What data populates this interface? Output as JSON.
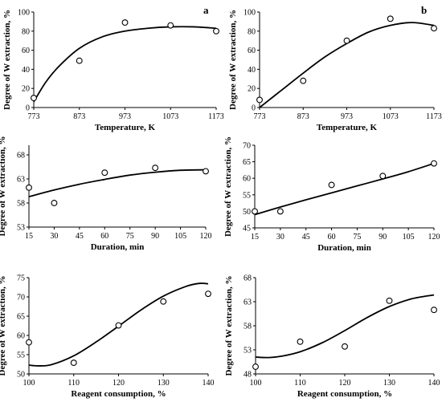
{
  "chart_data": [
    {
      "type": "scatter",
      "panel_label": "a",
      "xlabel": "Temperature, K",
      "ylabel": "Degree of W extraction, %",
      "xlim": [
        773,
        1173
      ],
      "ylim": [
        0,
        100
      ],
      "xticks": [
        773,
        873,
        973,
        1073,
        1173
      ],
      "yticks": [
        0,
        20,
        40,
        60,
        80,
        100
      ],
      "points": [
        {
          "x": 773,
          "y": 10
        },
        {
          "x": 873,
          "y": 49
        },
        {
          "x": 973,
          "y": 89
        },
        {
          "x": 1073,
          "y": 86
        },
        {
          "x": 1173,
          "y": 80
        }
      ],
      "trend": [
        {
          "x": 773,
          "y": 6
        },
        {
          "x": 800,
          "y": 27
        },
        {
          "x": 830,
          "y": 44
        },
        {
          "x": 873,
          "y": 62
        },
        {
          "x": 923,
          "y": 74
        },
        {
          "x": 973,
          "y": 80
        },
        {
          "x": 1023,
          "y": 83
        },
        {
          "x": 1073,
          "y": 84.5
        },
        {
          "x": 1123,
          "y": 84.5
        },
        {
          "x": 1173,
          "y": 83
        }
      ]
    },
    {
      "type": "scatter",
      "panel_label": "b",
      "xlabel": "Temperature, K",
      "ylabel": "Degree of W extraction, %",
      "xlim": [
        773,
        1173
      ],
      "ylim": [
        0,
        100
      ],
      "xticks": [
        773,
        873,
        973,
        1073,
        1173
      ],
      "yticks": [
        0,
        20,
        40,
        60,
        80,
        100
      ],
      "points": [
        {
          "x": 773,
          "y": 8
        },
        {
          "x": 873,
          "y": 28
        },
        {
          "x": 973,
          "y": 70
        },
        {
          "x": 1073,
          "y": 93
        },
        {
          "x": 1173,
          "y": 83
        }
      ],
      "trend": [
        {
          "x": 773,
          "y": 0
        },
        {
          "x": 823,
          "y": 18
        },
        {
          "x": 873,
          "y": 36
        },
        {
          "x": 923,
          "y": 53
        },
        {
          "x": 973,
          "y": 67
        },
        {
          "x": 1023,
          "y": 79
        },
        {
          "x": 1073,
          "y": 86
        },
        {
          "x": 1123,
          "y": 89
        },
        {
          "x": 1173,
          "y": 86
        }
      ]
    },
    {
      "type": "scatter",
      "panel_label": "",
      "xlabel": "Duration, min",
      "ylabel": "Degree of W extraction, %",
      "xlim": [
        15,
        120
      ],
      "ylim": [
        53,
        70
      ],
      "xticks": [
        15,
        30,
        45,
        60,
        75,
        90,
        105,
        120
      ],
      "yticks": [
        53,
        58,
        63,
        68
      ],
      "points": [
        {
          "x": 15,
          "y": 61.2
        },
        {
          "x": 30,
          "y": 58
        },
        {
          "x": 60,
          "y": 64.3
        },
        {
          "x": 90,
          "y": 65.3
        },
        {
          "x": 120,
          "y": 64.6
        }
      ],
      "trend": [
        {
          "x": 15,
          "y": 59.3
        },
        {
          "x": 30,
          "y": 60.7
        },
        {
          "x": 45,
          "y": 61.9
        },
        {
          "x": 60,
          "y": 62.9
        },
        {
          "x": 75,
          "y": 63.8
        },
        {
          "x": 90,
          "y": 64.4
        },
        {
          "x": 105,
          "y": 64.8
        },
        {
          "x": 120,
          "y": 64.9
        }
      ]
    },
    {
      "type": "scatter",
      "panel_label": "",
      "xlabel": "Duration, min",
      "ylabel": "Degree of W extraction, %",
      "xlim": [
        15,
        120
      ],
      "ylim": [
        45,
        70
      ],
      "xticks": [
        15,
        30,
        45,
        60,
        75,
        90,
        105,
        120
      ],
      "yticks": [
        45,
        50,
        55,
        60,
        65,
        70
      ],
      "points": [
        {
          "x": 15,
          "y": 50
        },
        {
          "x": 30,
          "y": 50
        },
        {
          "x": 60,
          "y": 58
        },
        {
          "x": 90,
          "y": 60.7
        },
        {
          "x": 120,
          "y": 64.5
        }
      ],
      "trend": [
        {
          "x": 15,
          "y": 49
        },
        {
          "x": 30,
          "y": 51.3
        },
        {
          "x": 45,
          "y": 53.5
        },
        {
          "x": 60,
          "y": 55.6
        },
        {
          "x": 75,
          "y": 57.7
        },
        {
          "x": 90,
          "y": 59.8
        },
        {
          "x": 105,
          "y": 62
        },
        {
          "x": 120,
          "y": 64.5
        }
      ]
    },
    {
      "type": "scatter",
      "panel_label": "",
      "xlabel": "Reagent consumption, %",
      "ylabel": "Degree of W extraction, %",
      "xlim": [
        100,
        140
      ],
      "ylim": [
        50,
        75
      ],
      "xticks": [
        100,
        110,
        120,
        130,
        140
      ],
      "yticks": [
        50,
        55,
        60,
        65,
        70,
        75
      ],
      "points": [
        {
          "x": 100,
          "y": 58.2
        },
        {
          "x": 110,
          "y": 52.9
        },
        {
          "x": 120,
          "y": 62.6
        },
        {
          "x": 130,
          "y": 68.8
        },
        {
          "x": 140,
          "y": 70.8
        }
      ],
      "trend": [
        {
          "x": 100,
          "y": 52.3
        },
        {
          "x": 102,
          "y": 52.1
        },
        {
          "x": 105,
          "y": 52.4
        },
        {
          "x": 110,
          "y": 54.7
        },
        {
          "x": 115,
          "y": 58.3
        },
        {
          "x": 120,
          "y": 62.4
        },
        {
          "x": 125,
          "y": 66.6
        },
        {
          "x": 130,
          "y": 70.2
        },
        {
          "x": 135,
          "y": 72.7
        },
        {
          "x": 138,
          "y": 73.5
        },
        {
          "x": 140,
          "y": 73.4
        }
      ]
    },
    {
      "type": "scatter",
      "panel_label": "",
      "xlabel": "Reagent consumption, %",
      "ylabel": "Degree of W extraction, %",
      "xlim": [
        100,
        140
      ],
      "ylim": [
        48,
        68
      ],
      "xticks": [
        100,
        110,
        120,
        130,
        140
      ],
      "yticks": [
        48,
        53,
        58,
        63,
        68
      ],
      "points": [
        {
          "x": 100,
          "y": 49.5
        },
        {
          "x": 110,
          "y": 54.7
        },
        {
          "x": 120,
          "y": 53.7
        },
        {
          "x": 130,
          "y": 63.2
        },
        {
          "x": 140,
          "y": 61.3
        }
      ],
      "trend": [
        {
          "x": 100,
          "y": 51.5
        },
        {
          "x": 103,
          "y": 51.4
        },
        {
          "x": 106,
          "y": 51.7
        },
        {
          "x": 110,
          "y": 52.6
        },
        {
          "x": 115,
          "y": 54.5
        },
        {
          "x": 120,
          "y": 57.0
        },
        {
          "x": 125,
          "y": 59.7
        },
        {
          "x": 130,
          "y": 62.0
        },
        {
          "x": 135,
          "y": 63.6
        },
        {
          "x": 140,
          "y": 64.4
        }
      ]
    }
  ]
}
